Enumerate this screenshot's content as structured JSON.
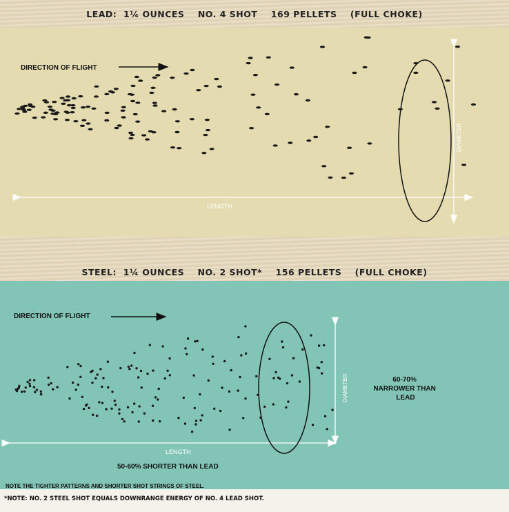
{
  "lead": {
    "title": "LEAD:  1¼ OUNCES    NO. 4 SHOT    169 PELLETS    (FULL CHOKE)",
    "direction_label": "DIRECTION OF FLIGHT",
    "length_label": "LENGTH",
    "diameter_label": "DIAMETER",
    "panel_color": "#e4dcb0"
  },
  "steel": {
    "title": "STEEL:  1¼ OUNCES    NO. 2 SHOT*    156 PELLETS    (FULL CHOKE)",
    "direction_label": "DIRECTION OF FLIGHT",
    "length_label": "LENGTH",
    "diameter_label": "DIAMETER",
    "narrower_text": [
      "60-70%",
      "NARROWER THAN",
      "LEAD"
    ],
    "shorter_text": "50-60% SHORTER THAN LEAD",
    "panel_color": "#82c5b6"
  },
  "footnote_panel": "NOTE THE TIGHTER PATTERNS AND SHORTER SHOT STRINGS OF STEEL.",
  "footnote_bottom": "*NOTE: NO. 2 STEEL SHOT EQUALS DOWNRANGE ENERGY OF NO. 4 LEAD SHOT.",
  "colors": {
    "background_wood": "#e4d8bc",
    "pellet": "#1a1a1a",
    "arrow_white": "#ffffff"
  }
}
